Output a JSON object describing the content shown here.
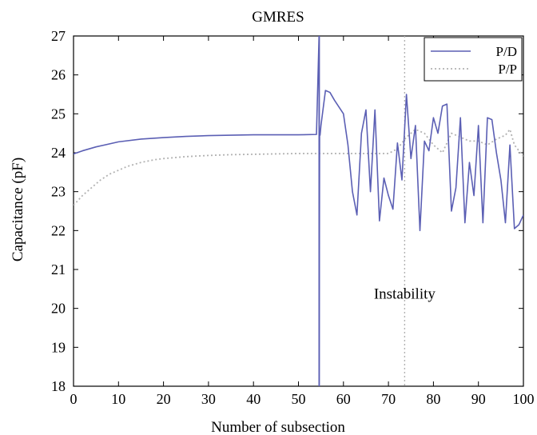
{
  "chart_data": {
    "type": "line",
    "title": "GMRES",
    "xlabel": "Number of subsection",
    "ylabel": "Capacitance (pF)",
    "xlim": [
      0,
      100
    ],
    "ylim": [
      18,
      27
    ],
    "xticks": [
      0,
      10,
      20,
      30,
      40,
      50,
      60,
      70,
      80,
      90,
      100
    ],
    "yticks": [
      18,
      19,
      20,
      21,
      22,
      23,
      24,
      25,
      26,
      27
    ],
    "grid": false,
    "legend": "top-right",
    "series": [
      {
        "name": "P/D",
        "style": "solid",
        "color": "#5b5fb4",
        "x": [
          0,
          2,
          5,
          10,
          15,
          20,
          25,
          30,
          35,
          40,
          45,
          50,
          54,
          54.6,
          54.6,
          54.7,
          54.8,
          55,
          56,
          57,
          58,
          60,
          61,
          62,
          63,
          64,
          65,
          66,
          67,
          68,
          69,
          70,
          71,
          72,
          73,
          74,
          75,
          76,
          77,
          78,
          79,
          80,
          81,
          82,
          83,
          84,
          85,
          86,
          87,
          88,
          89,
          90,
          91,
          92,
          93,
          94,
          95,
          96,
          97,
          98,
          99,
          100
        ],
        "y": [
          23.97,
          24.05,
          24.15,
          24.28,
          24.35,
          24.39,
          24.42,
          24.44,
          24.45,
          24.46,
          24.46,
          24.46,
          24.47,
          27.1,
          18.0,
          24.5,
          24.45,
          24.7,
          25.6,
          25.55,
          25.35,
          25.0,
          24.2,
          23.0,
          22.4,
          24.5,
          25.1,
          23.0,
          25.1,
          22.25,
          23.35,
          22.9,
          22.55,
          24.25,
          23.3,
          25.5,
          23.85,
          24.7,
          22.0,
          24.3,
          24.05,
          24.9,
          24.5,
          25.2,
          25.25,
          22.5,
          23.1,
          24.9,
          22.2,
          23.75,
          22.9,
          24.7,
          22.2,
          24.9,
          24.85,
          24.0,
          23.3,
          22.2,
          24.2,
          22.05,
          22.15,
          22.4
        ]
      },
      {
        "name": "P/P",
        "style": "dotted",
        "color": "#b2b2b2",
        "x": [
          0,
          2,
          4,
          6,
          8,
          10,
          12,
          15,
          18,
          20,
          25,
          30,
          35,
          40,
          45,
          50,
          54,
          55,
          60,
          65,
          70,
          72,
          74,
          76,
          78,
          80,
          82,
          84,
          86,
          88,
          90,
          92,
          94,
          96,
          97,
          98,
          100
        ],
        "y": [
          22.65,
          22.9,
          23.1,
          23.3,
          23.45,
          23.55,
          23.65,
          23.75,
          23.82,
          23.85,
          23.9,
          23.93,
          23.95,
          23.96,
          23.97,
          23.98,
          23.98,
          23.98,
          23.98,
          23.98,
          23.98,
          24.1,
          24.4,
          24.6,
          24.5,
          24.2,
          24.0,
          24.5,
          24.4,
          24.3,
          24.3,
          24.2,
          24.35,
          24.45,
          24.6,
          24.2,
          23.9
        ]
      }
    ],
    "vlines": [
      {
        "x": 54.6,
        "style": "solid",
        "color": "#5b5fb4"
      },
      {
        "x": 73.6,
        "style": "dotted",
        "color": "#b2b2b2"
      }
    ],
    "annotations": [
      {
        "text": "Instability",
        "x": 73.6,
        "y": 20.25
      }
    ]
  }
}
